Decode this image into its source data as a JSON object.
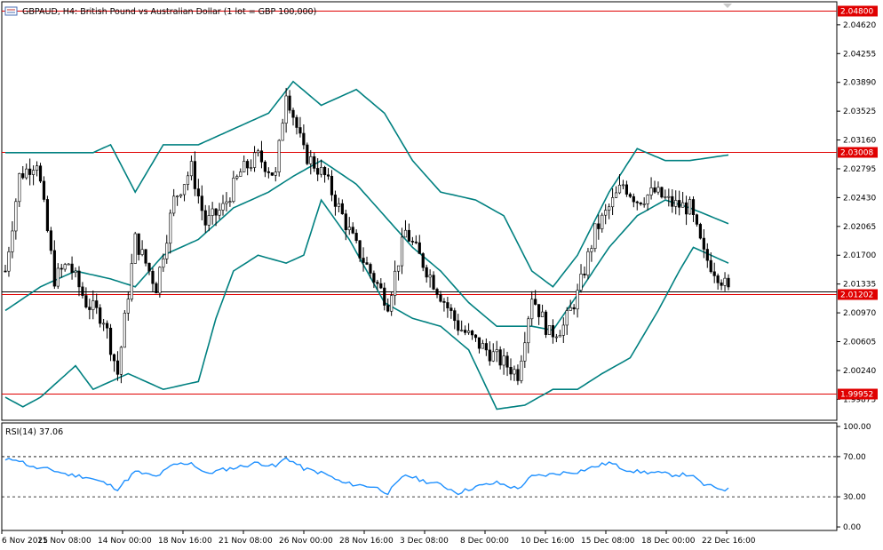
{
  "header": {
    "title": "GBPAUD, H4:  British Pound vs Australian Dollar (1 lot = GBP 100,000)",
    "icon": "chart-window-icon"
  },
  "price_axis": {
    "ticks": [
      "2.04620",
      "2.04255",
      "2.03890",
      "2.03525",
      "2.03160",
      "2.02795",
      "2.02430",
      "2.02065",
      "2.01700",
      "2.01335",
      "2.00970",
      "2.00605",
      "2.00240",
      "1.99875"
    ],
    "levels": [
      {
        "label": "2.04800",
        "value": 2.048,
        "color": "#e00000"
      },
      {
        "label": "2.03008",
        "value": 2.03008,
        "color": "#e00000"
      },
      {
        "label": "2.01202",
        "value": 2.01202,
        "color": "#e00000"
      },
      {
        "label": "1.99952",
        "value": 1.99952,
        "color": "#e00000"
      }
    ],
    "current_price": 2.0124
  },
  "rsi": {
    "title": "RSI(14) 37.06",
    "ticks": [
      "100.00",
      "70.00",
      "30.00",
      "0.00"
    ],
    "levels": [
      70,
      30
    ],
    "color": "#1e90ff"
  },
  "time_axis": {
    "labels": [
      "6 Nov 2025",
      "11 Nov 08:00",
      "14 Nov 00:00",
      "18 Nov 16:00",
      "21 Nov 08:00",
      "26 Nov 00:00",
      "28 Nov 16:00",
      "3 Dec 08:00",
      "8 Dec 00:00",
      "10 Dec 16:00",
      "15 Dec 08:00",
      "18 Dec 00:00",
      "22 Dec 16:00"
    ]
  },
  "chart_data": [
    {
      "type": "candlestick",
      "symbol": "GBPAUD",
      "timeframe": "H4",
      "bollinger_color": "#008080",
      "ylim": [
        1.9962,
        2.049
      ],
      "key_points": [
        {
          "t": 0,
          "price": 2.015
        },
        {
          "t": 4,
          "price": 2.027
        },
        {
          "t": 9,
          "price": 2.029
        },
        {
          "t": 14,
          "price": 2.014
        },
        {
          "t": 18,
          "price": 2.016
        },
        {
          "t": 23,
          "price": 2.011
        },
        {
          "t": 28,
          "price": 2.009
        },
        {
          "t": 32,
          "price": 2.002
        },
        {
          "t": 37,
          "price": 2.019
        },
        {
          "t": 43,
          "price": 2.013
        },
        {
          "t": 48,
          "price": 2.024
        },
        {
          "t": 53,
          "price": 2.028
        },
        {
          "t": 57,
          "price": 2.021
        },
        {
          "t": 62,
          "price": 2.023
        },
        {
          "t": 67,
          "price": 2.0275
        },
        {
          "t": 72,
          "price": 2.0295
        },
        {
          "t": 77,
          "price": 2.027
        },
        {
          "t": 80,
          "price": 2.038
        },
        {
          "t": 85,
          "price": 2.03
        },
        {
          "t": 91,
          "price": 2.027
        },
        {
          "t": 96,
          "price": 2.022
        },
        {
          "t": 100,
          "price": 2.018
        },
        {
          "t": 105,
          "price": 2.014
        },
        {
          "t": 109,
          "price": 2.011
        },
        {
          "t": 114,
          "price": 2.02
        },
        {
          "t": 119,
          "price": 2.016
        },
        {
          "t": 124,
          "price": 2.012
        },
        {
          "t": 129,
          "price": 2.008
        },
        {
          "t": 134,
          "price": 2.006
        },
        {
          "t": 140,
          "price": 2.004
        },
        {
          "t": 146,
          "price": 2.002
        },
        {
          "t": 150,
          "price": 2.012
        },
        {
          "t": 155,
          "price": 2.007
        },
        {
          "t": 159,
          "price": 2.008
        },
        {
          "t": 163,
          "price": 2.012
        },
        {
          "t": 168,
          "price": 2.02
        },
        {
          "t": 172,
          "price": 2.023
        },
        {
          "t": 176,
          "price": 2.026
        },
        {
          "t": 180,
          "price": 2.024
        },
        {
          "t": 185,
          "price": 2.025
        },
        {
          "t": 190,
          "price": 2.0235
        },
        {
          "t": 195,
          "price": 2.023
        },
        {
          "t": 199,
          "price": 2.017
        },
        {
          "t": 204,
          "price": 2.014
        },
        {
          "t": 206,
          "price": 2.0124
        }
      ],
      "upper_band": [
        [
          0,
          2.03
        ],
        [
          25,
          2.03
        ],
        [
          30,
          2.031
        ],
        [
          37,
          2.025
        ],
        [
          45,
          2.031
        ],
        [
          55,
          2.031
        ],
        [
          65,
          2.033
        ],
        [
          75,
          2.035
        ],
        [
          82,
          2.039
        ],
        [
          90,
          2.036
        ],
        [
          100,
          2.038
        ],
        [
          108,
          2.035
        ],
        [
          116,
          2.029
        ],
        [
          124,
          2.025
        ],
        [
          134,
          2.024
        ],
        [
          142,
          2.022
        ],
        [
          150,
          2.015
        ],
        [
          156,
          2.013
        ],
        [
          163,
          2.017
        ],
        [
          172,
          2.025
        ],
        [
          180,
          2.0305
        ],
        [
          188,
          2.029
        ],
        [
          195,
          2.029
        ],
        [
          206,
          2.0297
        ]
      ],
      "middle_band": [
        [
          0,
          2.01
        ],
        [
          10,
          2.013
        ],
        [
          20,
          2.015
        ],
        [
          30,
          2.014
        ],
        [
          37,
          2.013
        ],
        [
          45,
          2.017
        ],
        [
          55,
          2.019
        ],
        [
          65,
          2.023
        ],
        [
          75,
          2.025
        ],
        [
          82,
          2.027
        ],
        [
          90,
          2.029
        ],
        [
          100,
          2.026
        ],
        [
          108,
          2.022
        ],
        [
          116,
          2.018
        ],
        [
          124,
          2.015
        ],
        [
          132,
          2.011
        ],
        [
          140,
          2.008
        ],
        [
          150,
          2.008
        ],
        [
          156,
          2.0075
        ],
        [
          163,
          2.012
        ],
        [
          172,
          2.018
        ],
        [
          180,
          2.022
        ],
        [
          188,
          2.024
        ],
        [
          195,
          2.023
        ],
        [
          206,
          2.021
        ]
      ],
      "lower_band": [
        [
          0,
          1.999
        ],
        [
          5,
          1.9978
        ],
        [
          10,
          1.999
        ],
        [
          20,
          2.003
        ],
        [
          25,
          2.0
        ],
        [
          35,
          2.002
        ],
        [
          45,
          2.0
        ],
        [
          55,
          2.001
        ],
        [
          60,
          2.009
        ],
        [
          65,
          2.015
        ],
        [
          72,
          2.017
        ],
        [
          80,
          2.016
        ],
        [
          85,
          2.017
        ],
        [
          90,
          2.024
        ],
        [
          98,
          2.019
        ],
        [
          108,
          2.011
        ],
        [
          116,
          2.009
        ],
        [
          124,
          2.008
        ],
        [
          132,
          2.005
        ],
        [
          140,
          1.9975
        ],
        [
          148,
          1.998
        ],
        [
          156,
          2.0
        ],
        [
          163,
          2.0
        ],
        [
          170,
          2.002
        ],
        [
          178,
          2.004
        ],
        [
          186,
          2.01
        ],
        [
          192,
          2.015
        ],
        [
          196,
          2.018
        ],
        [
          206,
          2.016
        ]
      ]
    },
    {
      "type": "line",
      "name": "RSI(14)",
      "ylim": [
        0,
        100
      ],
      "values": [
        {
          "t": 0,
          "v": 66
        },
        {
          "t": 3,
          "v": 68
        },
        {
          "t": 8,
          "v": 59
        },
        {
          "t": 13,
          "v": 57
        },
        {
          "t": 18,
          "v": 52
        },
        {
          "t": 23,
          "v": 50
        },
        {
          "t": 28,
          "v": 44
        },
        {
          "t": 32,
          "v": 38
        },
        {
          "t": 37,
          "v": 55
        },
        {
          "t": 43,
          "v": 50
        },
        {
          "t": 48,
          "v": 62
        },
        {
          "t": 53,
          "v": 64
        },
        {
          "t": 57,
          "v": 53
        },
        {
          "t": 62,
          "v": 57
        },
        {
          "t": 67,
          "v": 60
        },
        {
          "t": 72,
          "v": 64
        },
        {
          "t": 77,
          "v": 60
        },
        {
          "t": 80,
          "v": 69
        },
        {
          "t": 85,
          "v": 58
        },
        {
          "t": 91,
          "v": 53
        },
        {
          "t": 96,
          "v": 44
        },
        {
          "t": 100,
          "v": 42
        },
        {
          "t": 105,
          "v": 40
        },
        {
          "t": 109,
          "v": 34
        },
        {
          "t": 114,
          "v": 52
        },
        {
          "t": 119,
          "v": 46
        },
        {
          "t": 124,
          "v": 42
        },
        {
          "t": 129,
          "v": 34
        },
        {
          "t": 134,
          "v": 40
        },
        {
          "t": 140,
          "v": 44
        },
        {
          "t": 146,
          "v": 38
        },
        {
          "t": 150,
          "v": 50
        },
        {
          "t": 155,
          "v": 52
        },
        {
          "t": 159,
          "v": 54
        },
        {
          "t": 163,
          "v": 55
        },
        {
          "t": 168,
          "v": 60
        },
        {
          "t": 172,
          "v": 64
        },
        {
          "t": 176,
          "v": 58
        },
        {
          "t": 180,
          "v": 55
        },
        {
          "t": 185,
          "v": 54
        },
        {
          "t": 190,
          "v": 52
        },
        {
          "t": 195,
          "v": 52
        },
        {
          "t": 199,
          "v": 42
        },
        {
          "t": 204,
          "v": 38
        },
        {
          "t": 206,
          "v": 37.06
        }
      ]
    }
  ]
}
